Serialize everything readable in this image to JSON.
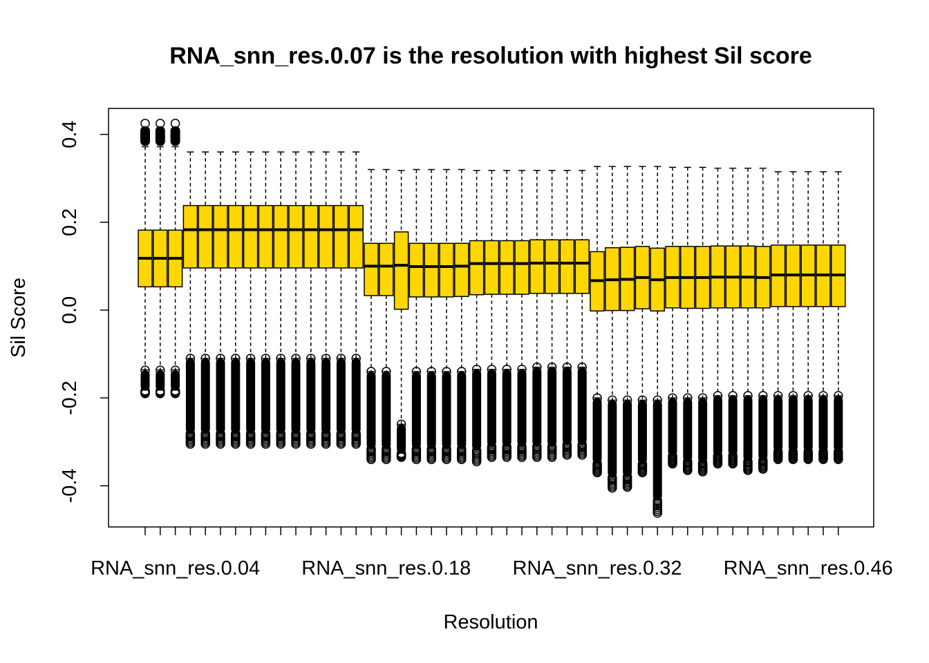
{
  "chart_data": {
    "type": "boxplot",
    "title": "RNA_snn_res.0.07 is the resolution with highest Sil score",
    "xlabel": "Resolution",
    "ylabel": "Sil Score",
    "ylim": [
      -0.5,
      0.45
    ],
    "yticks": [
      "-0.4",
      "-0.2",
      "0.0",
      "0.2",
      "0.4"
    ],
    "ytick_values": [
      -0.4,
      -0.2,
      0.0,
      0.2,
      0.4
    ],
    "xtick_labels": [
      "RNA_snn_res.0.04",
      "RNA_snn_res.0.18",
      "RNA_snn_res.0.32",
      "RNA_snn_res.0.46"
    ],
    "xtick_label_index": [
      2,
      16,
      30,
      44
    ],
    "box_color": "#FFD700",
    "boxes": [
      {
        "med": 0.118,
        "q1": 0.053,
        "q3": 0.182,
        "lw": -0.136,
        "uw": 0.372,
        "lo": [
          -0.19,
          -0.137
        ],
        "hi": [
          0.374,
          0.425
        ]
      },
      {
        "med": 0.118,
        "q1": 0.053,
        "q3": 0.182,
        "lw": -0.136,
        "uw": 0.372,
        "lo": [
          -0.19,
          -0.137
        ],
        "hi": [
          0.374,
          0.425
        ]
      },
      {
        "med": 0.118,
        "q1": 0.053,
        "q3": 0.182,
        "lw": -0.136,
        "uw": 0.372,
        "lo": [
          -0.19,
          -0.137
        ],
        "hi": [
          0.374,
          0.425
        ]
      },
      {
        "med": 0.183,
        "q1": 0.096,
        "q3": 0.238,
        "lw": -0.11,
        "uw": 0.36,
        "lo": [
          -0.305,
          -0.11
        ],
        "hi": []
      },
      {
        "med": 0.183,
        "q1": 0.096,
        "q3": 0.238,
        "lw": -0.11,
        "uw": 0.36,
        "lo": [
          -0.305,
          -0.11
        ],
        "hi": []
      },
      {
        "med": 0.183,
        "q1": 0.096,
        "q3": 0.238,
        "lw": -0.11,
        "uw": 0.36,
        "lo": [
          -0.305,
          -0.11
        ],
        "hi": []
      },
      {
        "med": 0.183,
        "q1": 0.096,
        "q3": 0.238,
        "lw": -0.11,
        "uw": 0.36,
        "lo": [
          -0.305,
          -0.11
        ],
        "hi": []
      },
      {
        "med": 0.183,
        "q1": 0.096,
        "q3": 0.238,
        "lw": -0.11,
        "uw": 0.36,
        "lo": [
          -0.305,
          -0.11
        ],
        "hi": []
      },
      {
        "med": 0.183,
        "q1": 0.096,
        "q3": 0.238,
        "lw": -0.11,
        "uw": 0.36,
        "lo": [
          -0.305,
          -0.11
        ],
        "hi": []
      },
      {
        "med": 0.183,
        "q1": 0.096,
        "q3": 0.238,
        "lw": -0.11,
        "uw": 0.36,
        "lo": [
          -0.305,
          -0.11
        ],
        "hi": []
      },
      {
        "med": 0.183,
        "q1": 0.096,
        "q3": 0.238,
        "lw": -0.11,
        "uw": 0.36,
        "lo": [
          -0.305,
          -0.11
        ],
        "hi": []
      },
      {
        "med": 0.183,
        "q1": 0.096,
        "q3": 0.238,
        "lw": -0.11,
        "uw": 0.36,
        "lo": [
          -0.305,
          -0.11
        ],
        "hi": []
      },
      {
        "med": 0.183,
        "q1": 0.096,
        "q3": 0.238,
        "lw": -0.11,
        "uw": 0.36,
        "lo": [
          -0.305,
          -0.11
        ],
        "hi": []
      },
      {
        "med": 0.183,
        "q1": 0.096,
        "q3": 0.238,
        "lw": -0.11,
        "uw": 0.36,
        "lo": [
          -0.305,
          -0.11
        ],
        "hi": []
      },
      {
        "med": 0.183,
        "q1": 0.096,
        "q3": 0.238,
        "lw": -0.11,
        "uw": 0.36,
        "lo": [
          -0.305,
          -0.11
        ],
        "hi": []
      },
      {
        "med": 0.1,
        "q1": 0.033,
        "q3": 0.152,
        "lw": -0.14,
        "uw": 0.32,
        "lo": [
          -0.34,
          -0.14
        ],
        "hi": []
      },
      {
        "med": 0.1,
        "q1": 0.033,
        "q3": 0.152,
        "lw": -0.14,
        "uw": 0.32,
        "lo": [
          -0.34,
          -0.14
        ],
        "hi": []
      },
      {
        "med": 0.102,
        "q1": 0.002,
        "q3": 0.178,
        "lw": -0.26,
        "uw": 0.318,
        "lo": [
          -0.335,
          -0.26
        ],
        "hi": []
      },
      {
        "med": 0.099,
        "q1": 0.03,
        "q3": 0.152,
        "lw": -0.14,
        "uw": 0.32,
        "lo": [
          -0.34,
          -0.14
        ],
        "hi": []
      },
      {
        "med": 0.099,
        "q1": 0.03,
        "q3": 0.152,
        "lw": -0.14,
        "uw": 0.32,
        "lo": [
          -0.34,
          -0.14
        ],
        "hi": []
      },
      {
        "med": 0.099,
        "q1": 0.03,
        "q3": 0.152,
        "lw": -0.14,
        "uw": 0.32,
        "lo": [
          -0.34,
          -0.14
        ],
        "hi": []
      },
      {
        "med": 0.1,
        "q1": 0.031,
        "q3": 0.152,
        "lw": -0.14,
        "uw": 0.32,
        "lo": [
          -0.34,
          -0.14
        ],
        "hi": []
      },
      {
        "med": 0.106,
        "q1": 0.035,
        "q3": 0.158,
        "lw": -0.135,
        "uw": 0.318,
        "lo": [
          -0.345,
          -0.135
        ],
        "hi": []
      },
      {
        "med": 0.106,
        "q1": 0.036,
        "q3": 0.158,
        "lw": -0.135,
        "uw": 0.318,
        "lo": [
          -0.335,
          -0.135
        ],
        "hi": []
      },
      {
        "med": 0.106,
        "q1": 0.036,
        "q3": 0.158,
        "lw": -0.135,
        "uw": 0.318,
        "lo": [
          -0.335,
          -0.135
        ],
        "hi": []
      },
      {
        "med": 0.106,
        "q1": 0.036,
        "q3": 0.158,
        "lw": -0.135,
        "uw": 0.318,
        "lo": [
          -0.335,
          -0.135
        ],
        "hi": []
      },
      {
        "med": 0.107,
        "q1": 0.038,
        "q3": 0.16,
        "lw": -0.13,
        "uw": 0.318,
        "lo": [
          -0.335,
          -0.13
        ],
        "hi": []
      },
      {
        "med": 0.107,
        "q1": 0.038,
        "q3": 0.16,
        "lw": -0.13,
        "uw": 0.318,
        "lo": [
          -0.335,
          -0.13
        ],
        "hi": []
      },
      {
        "med": 0.107,
        "q1": 0.038,
        "q3": 0.16,
        "lw": -0.13,
        "uw": 0.318,
        "lo": [
          -0.33,
          -0.13
        ],
        "hi": []
      },
      {
        "med": 0.107,
        "q1": 0.038,
        "q3": 0.16,
        "lw": -0.13,
        "uw": 0.318,
        "lo": [
          -0.33,
          -0.13
        ],
        "hi": []
      },
      {
        "med": 0.067,
        "q1": -0.002,
        "q3": 0.133,
        "lw": -0.2,
        "uw": 0.327,
        "lo": [
          -0.37,
          -0.2
        ],
        "hi": []
      },
      {
        "med": 0.069,
        "q1": -0.001,
        "q3": 0.142,
        "lw": -0.205,
        "uw": 0.327,
        "lo": [
          -0.405,
          -0.205
        ],
        "hi": []
      },
      {
        "med": 0.07,
        "q1": -0.001,
        "q3": 0.143,
        "lw": -0.205,
        "uw": 0.327,
        "lo": [
          -0.403,
          -0.205
        ],
        "hi": []
      },
      {
        "med": 0.074,
        "q1": 0.003,
        "q3": 0.145,
        "lw": -0.205,
        "uw": 0.327,
        "lo": [
          -0.37,
          -0.205
        ],
        "hi": []
      },
      {
        "med": 0.069,
        "q1": -0.002,
        "q3": 0.141,
        "lw": -0.205,
        "uw": 0.327,
        "lo": [
          -0.462,
          -0.205
        ],
        "hi": []
      },
      {
        "med": 0.074,
        "q1": 0.005,
        "q3": 0.145,
        "lw": -0.2,
        "uw": 0.325,
        "lo": [
          -0.35,
          -0.2
        ],
        "hi": []
      },
      {
        "med": 0.074,
        "q1": 0.004,
        "q3": 0.145,
        "lw": -0.2,
        "uw": 0.325,
        "lo": [
          -0.365,
          -0.2
        ],
        "hi": []
      },
      {
        "med": 0.074,
        "q1": 0.004,
        "q3": 0.145,
        "lw": -0.2,
        "uw": 0.325,
        "lo": [
          -0.368,
          -0.2
        ],
        "hi": []
      },
      {
        "med": 0.075,
        "q1": 0.005,
        "q3": 0.146,
        "lw": -0.195,
        "uw": 0.323,
        "lo": [
          -0.35,
          -0.195
        ],
        "hi": []
      },
      {
        "med": 0.075,
        "q1": 0.005,
        "q3": 0.146,
        "lw": -0.195,
        "uw": 0.323,
        "lo": [
          -0.35,
          -0.195
        ],
        "hi": []
      },
      {
        "med": 0.075,
        "q1": 0.005,
        "q3": 0.146,
        "lw": -0.195,
        "uw": 0.323,
        "lo": [
          -0.365,
          -0.195
        ],
        "hi": []
      },
      {
        "med": 0.074,
        "q1": 0.005,
        "q3": 0.145,
        "lw": -0.195,
        "uw": 0.323,
        "lo": [
          -0.362,
          -0.195
        ],
        "hi": []
      },
      {
        "med": 0.08,
        "q1": 0.008,
        "q3": 0.148,
        "lw": -0.195,
        "uw": 0.315,
        "lo": [
          -0.34,
          -0.195
        ],
        "hi": []
      },
      {
        "med": 0.08,
        "q1": 0.008,
        "q3": 0.148,
        "lw": -0.195,
        "uw": 0.315,
        "lo": [
          -0.34,
          -0.195
        ],
        "hi": []
      },
      {
        "med": 0.08,
        "q1": 0.008,
        "q3": 0.148,
        "lw": -0.195,
        "uw": 0.315,
        "lo": [
          -0.34,
          -0.195
        ],
        "hi": []
      },
      {
        "med": 0.08,
        "q1": 0.008,
        "q3": 0.148,
        "lw": -0.195,
        "uw": 0.315,
        "lo": [
          -0.34,
          -0.195
        ],
        "hi": []
      },
      {
        "med": 0.08,
        "q1": 0.008,
        "q3": 0.148,
        "lw": -0.195,
        "uw": 0.315,
        "lo": [
          -0.34,
          -0.195
        ],
        "hi": []
      }
    ]
  }
}
